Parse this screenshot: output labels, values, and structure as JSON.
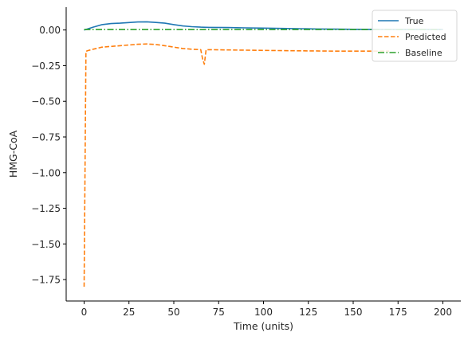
{
  "chart_data": {
    "type": "line",
    "title": "",
    "xlabel": "Time (units)",
    "ylabel": "HMG-CoA",
    "xlim": [
      -10,
      210
    ],
    "ylim": [
      -1.9,
      0.16
    ],
    "xticks": [
      0,
      25,
      50,
      75,
      100,
      125,
      150,
      175,
      200
    ],
    "xtick_labels": [
      "0",
      "25",
      "50",
      "75",
      "100",
      "125",
      "150",
      "175",
      "200"
    ],
    "yticks": [
      0.0,
      -0.25,
      -0.5,
      -0.75,
      -1.0,
      -1.25,
      -1.5,
      -1.75
    ],
    "ytick_labels": [
      "0.00",
      "−0.25",
      "−0.50",
      "−0.75",
      "−1.00",
      "−1.25",
      "−1.50",
      "−1.75"
    ],
    "grid": false,
    "legend_position": "top-right",
    "series": [
      {
        "name": "True",
        "color": "#1f77b4",
        "style": "solid",
        "x": [
          0,
          5,
          10,
          15,
          20,
          25,
          30,
          35,
          40,
          45,
          50,
          55,
          60,
          65,
          70,
          80,
          90,
          100,
          110,
          120,
          130,
          140,
          150,
          160,
          170,
          180,
          190,
          200
        ],
        "y": [
          0.0,
          0.02,
          0.038,
          0.045,
          0.048,
          0.052,
          0.056,
          0.057,
          0.053,
          0.048,
          0.038,
          0.028,
          0.023,
          0.02,
          0.018,
          0.017,
          0.015,
          0.013,
          0.011,
          0.009,
          0.007,
          0.006,
          0.005,
          0.004,
          0.004,
          0.003,
          0.003,
          0.003
        ]
      },
      {
        "name": "Predicted",
        "color": "#ff7f0e",
        "style": "dashed",
        "x": [
          0,
          1,
          2,
          5,
          10,
          20,
          30,
          35,
          40,
          45,
          50,
          55,
          60,
          65,
          66,
          67,
          68,
          70,
          80,
          100,
          120,
          140,
          160,
          170
        ],
        "y": [
          -1.8,
          -0.15,
          -0.145,
          -0.135,
          -0.12,
          -0.11,
          -0.1,
          -0.098,
          -0.102,
          -0.11,
          -0.12,
          -0.13,
          -0.135,
          -0.138,
          -0.2,
          -0.24,
          -0.138,
          -0.138,
          -0.14,
          -0.143,
          -0.146,
          -0.148,
          -0.148,
          -0.148
        ]
      },
      {
        "name": "Baseline",
        "color": "#2ca02c",
        "style": "dashdot",
        "x": [
          0,
          25,
          50,
          75,
          100,
          125,
          150,
          175,
          200
        ],
        "y": [
          0.003,
          0.003,
          0.003,
          0.003,
          0.003,
          0.003,
          0.003,
          0.003,
          0.003
        ]
      }
    ]
  }
}
